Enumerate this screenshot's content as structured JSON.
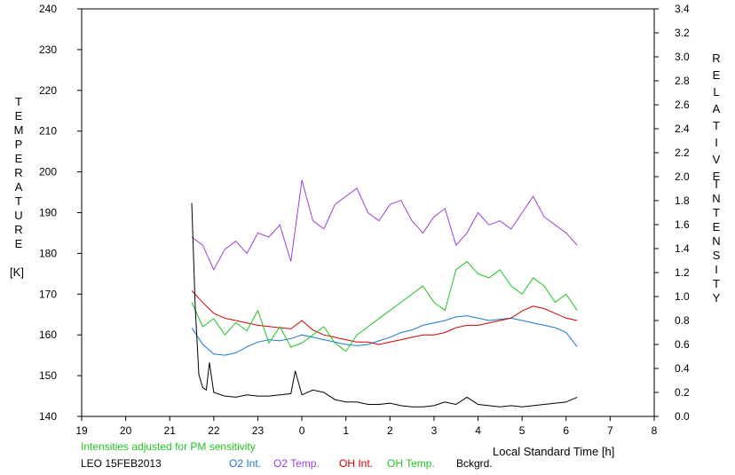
{
  "chart_data": {
    "type": "line",
    "left_axis": {
      "label_letters": [
        "T",
        "E",
        "M",
        "P",
        "E",
        "R",
        "A",
        "T",
        "U",
        "R",
        "E"
      ],
      "unit": "[K]",
      "ylim": [
        140,
        240
      ],
      "ticks": [
        140,
        150,
        160,
        170,
        180,
        190,
        200,
        210,
        220,
        230,
        240
      ]
    },
    "right_axis": {
      "label_letters_1": [
        "R",
        "E",
        "L",
        "A",
        "T",
        "I",
        "V",
        "E"
      ],
      "label_letters_2": [
        "I",
        "N",
        "T",
        "E",
        "N",
        "S",
        "I",
        "T",
        "Y"
      ],
      "ylim": [
        0.0,
        3.4
      ],
      "ticks": [
        "0.0",
        "0.2",
        "0.4",
        "0.6",
        "0.8",
        "1.0",
        "1.2",
        "1.4",
        "1.6",
        "1.8",
        "2.0",
        "2.2",
        "2.4",
        "2.6",
        "2.8",
        "3.0",
        "3.2",
        "3.4"
      ]
    },
    "x_axis": {
      "label": "Local Standard Time [h]",
      "xlim": [
        19,
        32
      ],
      "ticks": [
        "19",
        "20",
        "21",
        "22",
        "23",
        "0",
        "1",
        "2",
        "3",
        "4",
        "5",
        "6",
        "7",
        "8"
      ]
    },
    "note": "Intensities adjusted for PM sensitivity",
    "station": "LEO 15FEB2013",
    "series": [
      {
        "name": "O2 Int.",
        "color": "#1a78d0",
        "axis": "right",
        "x": [
          21.5,
          21.75,
          22,
          22.25,
          22.5,
          22.75,
          23,
          23.25,
          23.5,
          23.75,
          24,
          24.25,
          24.5,
          24.75,
          25,
          25.25,
          25.5,
          25.75,
          26,
          26.25,
          26.5,
          26.75,
          27,
          27.25,
          27.5,
          27.75,
          28,
          28.25,
          28.5,
          28.75,
          29,
          29.25,
          29.5,
          29.75,
          30,
          30.25
        ],
        "y": [
          0.74,
          0.6,
          0.52,
          0.51,
          0.53,
          0.58,
          0.62,
          0.64,
          0.63,
          0.65,
          0.68,
          0.66,
          0.64,
          0.62,
          0.6,
          0.59,
          0.6,
          0.63,
          0.66,
          0.7,
          0.72,
          0.76,
          0.78,
          0.8,
          0.83,
          0.84,
          0.82,
          0.8,
          0.81,
          0.82,
          0.8,
          0.78,
          0.76,
          0.74,
          0.7,
          0.58
        ]
      },
      {
        "name": "O2 Temp.",
        "color": "#9b3fd8",
        "axis": "left",
        "x": [
          21.5,
          21.75,
          22,
          22.25,
          22.5,
          22.75,
          23,
          23.25,
          23.5,
          23.75,
          24,
          24.25,
          24.5,
          24.75,
          25,
          25.25,
          25.5,
          25.75,
          26,
          26.25,
          26.5,
          26.75,
          27,
          27.25,
          27.5,
          27.75,
          28,
          28.25,
          28.5,
          28.75,
          29,
          29.25,
          29.5,
          29.75,
          30,
          30.25
        ],
        "y": [
          184,
          182,
          176,
          181,
          183,
          180,
          185,
          184,
          187,
          178,
          198,
          188,
          186,
          192,
          194,
          196,
          190,
          188,
          192,
          193,
          188,
          185,
          189,
          191,
          182,
          185,
          190,
          187,
          188,
          186,
          190,
          194,
          189,
          187,
          185,
          182
        ]
      },
      {
        "name": "OH Int.",
        "color": "#d40000",
        "axis": "right",
        "x": [
          21.5,
          21.75,
          22,
          22.25,
          22.5,
          22.75,
          23,
          23.25,
          23.5,
          23.75,
          24,
          24.25,
          24.5,
          24.75,
          25,
          25.25,
          25.5,
          25.75,
          26,
          26.25,
          26.5,
          26.75,
          27,
          27.25,
          27.5,
          27.75,
          28,
          28.25,
          28.5,
          28.75,
          29,
          29.25,
          29.5,
          29.75,
          30,
          30.25
        ],
        "y": [
          1.05,
          0.95,
          0.86,
          0.82,
          0.8,
          0.78,
          0.76,
          0.75,
          0.74,
          0.73,
          0.8,
          0.72,
          0.68,
          0.66,
          0.64,
          0.62,
          0.62,
          0.6,
          0.62,
          0.64,
          0.66,
          0.68,
          0.68,
          0.7,
          0.74,
          0.76,
          0.76,
          0.78,
          0.8,
          0.82,
          0.88,
          0.92,
          0.9,
          0.86,
          0.82,
          0.8
        ]
      },
      {
        "name": "OH Temp.",
        "color": "#22c422",
        "axis": "left",
        "x": [
          21.5,
          21.75,
          22,
          22.25,
          22.5,
          22.75,
          23,
          23.25,
          23.5,
          23.75,
          24,
          24.25,
          24.5,
          24.75,
          25,
          25.25,
          25.5,
          25.75,
          26,
          26.25,
          26.5,
          26.75,
          27,
          27.25,
          27.5,
          27.75,
          28,
          28.25,
          28.5,
          28.75,
          29,
          29.25,
          29.5,
          29.75,
          30,
          30.25
        ],
        "y": [
          168,
          162,
          164,
          160,
          163,
          161,
          166,
          158,
          162,
          157,
          158,
          160,
          162,
          158,
          156,
          160,
          162,
          164,
          166,
          168,
          170,
          172,
          168,
          166,
          176,
          178,
          175,
          174,
          176,
          172,
          170,
          174,
          172,
          168,
          170,
          166
        ]
      },
      {
        "name": "Bckgrd.",
        "color": "#000000",
        "axis": "right",
        "x": [
          21.5,
          21.58,
          21.66,
          21.75,
          21.83,
          21.9,
          22,
          22.25,
          22.5,
          22.75,
          23,
          23.25,
          23.5,
          23.75,
          23.85,
          24,
          24.25,
          24.5,
          24.75,
          25,
          25.25,
          25.5,
          25.75,
          26,
          26.25,
          26.5,
          26.75,
          27,
          27.25,
          27.5,
          27.75,
          28,
          28.25,
          28.5,
          28.75,
          29,
          29.25,
          29.5,
          29.75,
          30,
          30.25
        ],
        "y": [
          1.78,
          0.9,
          0.35,
          0.24,
          0.22,
          0.45,
          0.2,
          0.17,
          0.16,
          0.18,
          0.17,
          0.17,
          0.18,
          0.19,
          0.38,
          0.18,
          0.22,
          0.2,
          0.14,
          0.12,
          0.12,
          0.1,
          0.1,
          0.11,
          0.09,
          0.08,
          0.08,
          0.09,
          0.12,
          0.1,
          0.16,
          0.1,
          0.09,
          0.08,
          0.09,
          0.08,
          0.09,
          0.1,
          0.11,
          0.12,
          0.16
        ]
      }
    ]
  }
}
